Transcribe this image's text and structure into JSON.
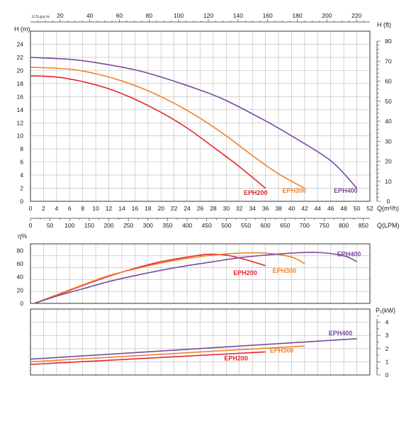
{
  "chart_data": [
    {
      "type": "line",
      "panel": "head",
      "x_top_label": "U.S.g.p.m.",
      "x_top_ticks": [
        "20",
        "40",
        "60",
        "80",
        "100",
        "120",
        "140",
        "160",
        "180",
        "200",
        "220"
      ],
      "x_top_range": [
        0,
        229
      ],
      "ylabel_left": "H (m)",
      "ylabel_right": "H (ft)",
      "ylim": [
        0,
        24
      ],
      "y_ticks_left": [
        "0",
        "2",
        "4",
        "6",
        "8",
        "10",
        "12",
        "14",
        "16",
        "18",
        "20",
        "22",
        "24"
      ],
      "ylim_right": [
        0,
        80
      ],
      "y_ticks_right": [
        "0",
        "10",
        "20",
        "30",
        "40",
        "50",
        "60",
        "70",
        "80"
      ],
      "xlabel_m3h": "Q(m³/h)",
      "x_ticks_m3h": [
        "0",
        "2",
        "4",
        "6",
        "8",
        "10",
        "12",
        "14",
        "16",
        "18",
        "20",
        "22",
        "24",
        "26",
        "28",
        "30",
        "32",
        "34",
        "36",
        "38",
        "40",
        "42",
        "44",
        "46",
        "48",
        "50",
        "52"
      ],
      "xlim_m3h": [
        0,
        52
      ],
      "xlabel_lpm": "Q(LPM)",
      "x_ticks_lpm": [
        "0",
        "50",
        "100",
        "150",
        "200",
        "250",
        "300",
        "350",
        "400",
        "450",
        "500",
        "550",
        "600",
        "650",
        "700",
        "750",
        "800",
        "850"
      ],
      "xlim_lpm": [
        0,
        866.67
      ],
      "grid": true,
      "series": [
        {
          "name": "EPH200",
          "color": "#e3262e",
          "x": [
            0,
            4,
            8,
            12,
            16,
            20,
            24,
            28,
            32,
            36
          ],
          "y": [
            19.2,
            19.0,
            18.3,
            17.2,
            15.6,
            13.6,
            11.2,
            8.3,
            5.3,
            2.0
          ]
        },
        {
          "name": "EPH300",
          "color": "#f0832a",
          "x": [
            0,
            6,
            10,
            14,
            18,
            22,
            26,
            30,
            34,
            38,
            42
          ],
          "y": [
            20.5,
            20.2,
            19.5,
            18.4,
            16.9,
            15.0,
            12.7,
            10.0,
            7.0,
            4.2,
            2.0
          ]
        },
        {
          "name": "EPH400",
          "color": "#7a4b9c",
          "x": [
            0,
            6,
            10,
            16,
            20,
            26,
            30,
            36,
            40,
            46,
            50
          ],
          "y": [
            22.0,
            21.7,
            21.2,
            20.1,
            19.0,
            17.0,
            15.4,
            12.3,
            10.0,
            6.2,
            2.0
          ]
        }
      ],
      "label_pos_x": [
        34.5,
        40.4,
        48.3
      ],
      "label_pos_y": [
        1.0,
        1.3,
        1.3
      ]
    },
    {
      "type": "line",
      "panel": "efficiency",
      "ylabel": "η%",
      "ylim": [
        0,
        90
      ],
      "y_ticks": [
        "0",
        "20",
        "40",
        "60",
        "80"
      ],
      "grid": true,
      "series": [
        {
          "name": "EPH200",
          "color": "#e3262e",
          "x": [
            0.6,
            4,
            8,
            12,
            16,
            20,
            24,
            27,
            30,
            33,
            36
          ],
          "y": [
            0,
            12,
            27,
            41,
            53,
            63,
            70,
            74,
            73,
            66,
            57
          ]
        },
        {
          "name": "EPH300",
          "color": "#f0832a",
          "x": [
            0.6,
            4,
            8,
            12,
            16,
            20,
            24,
            28,
            32,
            36,
            40,
            42
          ],
          "y": [
            0,
            13,
            28,
            42,
            52,
            61,
            68,
            73,
            76,
            76,
            70,
            60
          ]
        },
        {
          "name": "EPH400",
          "color": "#7a4b9c",
          "x": [
            0.6,
            4,
            8,
            12,
            16,
            20,
            24,
            28,
            32,
            36,
            40,
            44,
            48,
            50
          ],
          "y": [
            0,
            11,
            22,
            33,
            42,
            50,
            57,
            63,
            69,
            73,
            76,
            77,
            72,
            63
          ]
        }
      ],
      "label_pos_x": [
        32.9,
        38.9,
        48.8
      ],
      "label_pos_y": [
        43,
        46,
        71
      ]
    },
    {
      "type": "line",
      "panel": "power",
      "ylabel_right": "P₁(kW)",
      "ylim": [
        0,
        5
      ],
      "y_ticks_right": [
        "0",
        "1",
        "2",
        "3",
        "4"
      ],
      "grid": true,
      "series": [
        {
          "name": "EPH200",
          "color": "#e3262e",
          "x": [
            0,
            36
          ],
          "y": [
            0.8,
            1.75
          ]
        },
        {
          "name": "EPH300",
          "color": "#f0832a",
          "x": [
            0,
            42
          ],
          "y": [
            1.0,
            2.2
          ]
        },
        {
          "name": "EPH400",
          "color": "#7a4b9c",
          "x": [
            0,
            50
          ],
          "y": [
            1.2,
            2.75
          ]
        }
      ],
      "label_pos_x": [
        31.5,
        38.5,
        47.5
      ],
      "label_pos_y": [
        1.1,
        1.7,
        3.0
      ]
    }
  ]
}
